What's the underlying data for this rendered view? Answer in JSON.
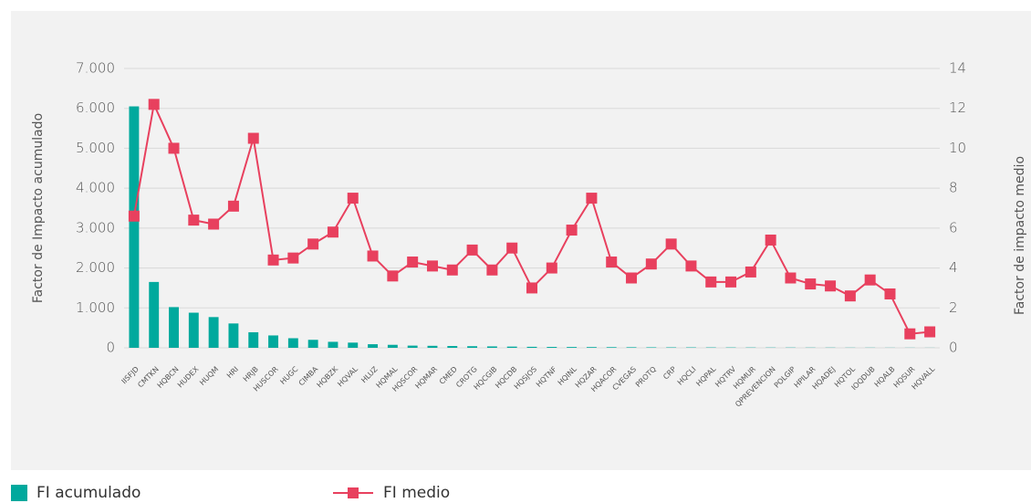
{
  "chart_data": {
    "type": "bar-line",
    "categories": [
      "IISFJD",
      "CMTKN",
      "HQBCN",
      "HUDEX",
      "HUQM",
      "HRI",
      "HRJB",
      "HUSCOR",
      "HUGC",
      "CIMBA",
      "HQBZK",
      "HQVAL",
      "HLUZ",
      "HQMAL",
      "HQSCOR",
      "HQMAR",
      "CMED",
      "CROTG",
      "HQCGIB",
      "HQCDB",
      "HQSJOS",
      "HQTNF",
      "HQINL",
      "HQZAR",
      "HQACOR",
      "CVEGAS",
      "PROTQ",
      "CRP",
      "HQCLI",
      "HQPAL",
      "HQTRV",
      "HQMUR",
      "QPREVENCION",
      "POLGIP",
      "HPILAR",
      "HQADEJ",
      "HQTOL",
      "IOQDUB",
      "HQALB",
      "HQSUR",
      "HQVALL"
    ],
    "series": [
      {
        "name": "FI acumulado",
        "color": "#00a99d",
        "type": "bar",
        "values": [
          6050,
          1650,
          1020,
          880,
          770,
          610,
          390,
          310,
          240,
          200,
          150,
          130,
          90,
          75,
          55,
          50,
          45,
          40,
          35,
          30,
          25,
          22,
          20,
          18,
          16,
          14,
          12,
          11,
          10,
          9,
          8,
          7,
          6,
          6,
          5,
          5,
          4,
          4,
          3,
          3,
          2
        ]
      },
      {
        "name": "FI medio",
        "color": "#e8405e",
        "type": "line",
        "axis": "y2",
        "values": [
          6.6,
          12.2,
          10,
          6.4,
          6.2,
          7.1,
          10.5,
          4.4,
          4.5,
          5.2,
          5.8,
          7.5,
          4.6,
          3.6,
          4.3,
          4.1,
          3.9,
          4.9,
          3.9,
          5.0,
          3.0,
          4.0,
          5.9,
          7.5,
          4.3,
          3.5,
          4.2,
          5.2,
          4.1,
          3.3,
          3.3,
          3.8,
          5.4,
          3.5,
          3.2,
          3.1,
          2.6,
          3.4,
          2.7,
          0.7,
          0.8
        ]
      }
    ],
    "ylabel": "Factor de Impacto acumulado",
    "y2label": "Factor de impacto medio",
    "ylim": [
      0,
      7000
    ],
    "yticks": [
      0,
      {
        "value": 1000,
        "label": "1.000"
      },
      {
        "value": 2000,
        "label": "2.000"
      },
      {
        "value": 3000,
        "label": "3.000"
      },
      {
        "value": 4000,
        "label": "4.000"
      },
      {
        "value": 5000,
        "label": "5.000"
      },
      {
        "value": 6000,
        "label": "6.000"
      },
      {
        "value": 7000,
        "label": "7.000"
      }
    ],
    "y2lim": [
      0,
      14
    ],
    "y2ticks": [
      0,
      2,
      4,
      6,
      8,
      10,
      12,
      14
    ],
    "grid": true
  }
}
